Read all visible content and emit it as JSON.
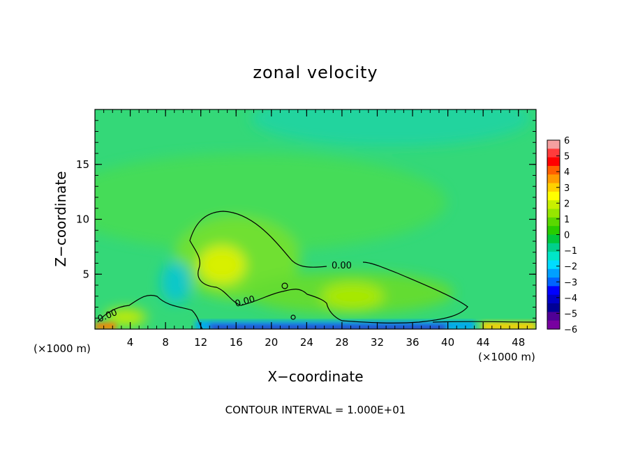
{
  "chart_data": {
    "type": "heatmap",
    "title": "zonal velocity",
    "xlabel": "X−coordinate",
    "ylabel": "Z−coordinate",
    "x_unit": "(×1000 m)",
    "x_unit_right": "(×1000 m)",
    "xlim": [
      0,
      50
    ],
    "ylim": [
      0,
      20
    ],
    "x_ticks": [
      4,
      8,
      12,
      16,
      20,
      24,
      28,
      32,
      36,
      40,
      44,
      48
    ],
    "y_ticks": [
      5,
      10,
      15
    ],
    "contour_interval_label": "CONTOUR INTERVAL = 1.000E+01",
    "contour_labels": [
      "0.00",
      "0.00",
      "0.00"
    ],
    "colorbar": {
      "ticks": [
        "6",
        "5",
        "4",
        "3",
        "2",
        "1",
        "0",
        "−1",
        "−2",
        "−3",
        "−4",
        "−5",
        "−6"
      ],
      "vmin": -6,
      "vmax": 6,
      "colors": [
        "#f4a0a0",
        "#ff3c3c",
        "#ff0000",
        "#ff6000",
        "#ff9c00",
        "#ffd000",
        "#ffff00",
        "#c8f000",
        "#96e600",
        "#5ad800",
        "#28cc00",
        "#00c83c",
        "#00d08c",
        "#00e6c8",
        "#00dcff",
        "#00a0ff",
        "#0064ff",
        "#0000ff",
        "#0000c8",
        "#000096",
        "#500096",
        "#7800a0"
      ]
    },
    "field_regions": [
      {
        "region": "upper domain",
        "value": -0.6
      },
      {
        "region": "top center band",
        "value": -1.3
      },
      {
        "region": "updraft core near x=14, z=6",
        "value": 1.8
      },
      {
        "region": "secondary core near x=30, z=3",
        "value": 0.9
      },
      {
        "region": "low level near x=10, z=4",
        "value": -1.8
      },
      {
        "region": "surface jet x=12-40",
        "value": -5.0
      },
      {
        "region": "surface left edge",
        "value": 4.0
      },
      {
        "region": "surface right edge",
        "value": 3.0
      }
    ]
  }
}
